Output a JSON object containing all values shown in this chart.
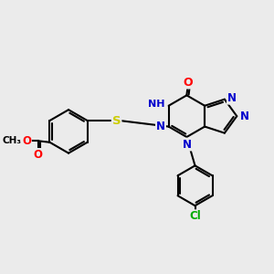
{
  "bg_color": "#ebebeb",
  "bond_color": "#000000",
  "atom_colors": {
    "O": "#ff0000",
    "N": "#0000cd",
    "S": "#cccc00",
    "Cl": "#00aa00",
    "H": "#5f9ea0",
    "C": "#000000"
  },
  "bond_width": 1.5,
  "font_size": 8.5
}
